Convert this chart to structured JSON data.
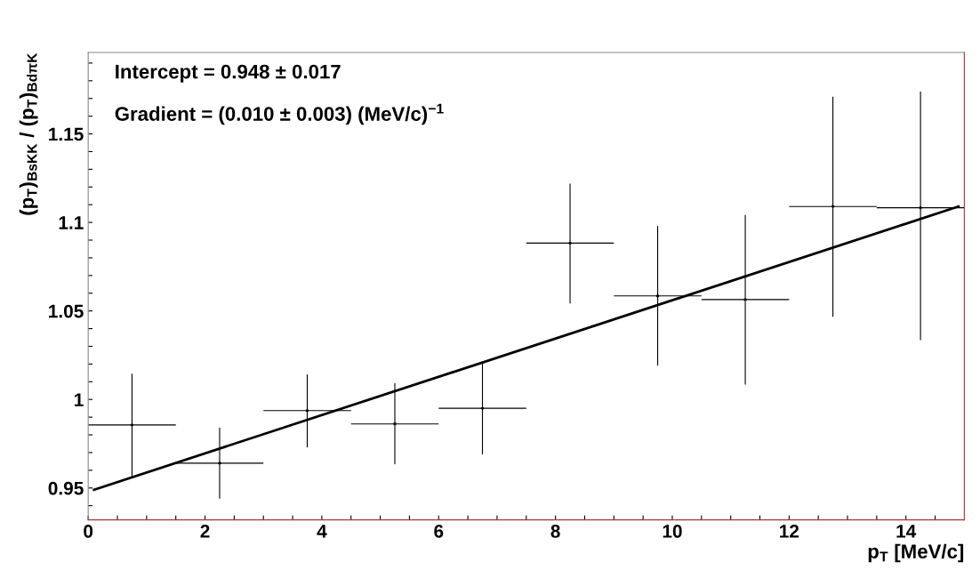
{
  "chart_data": {
    "type": "scatter",
    "xlabel": "p$_{T}$ [MeV/c]",
    "ylabel": "(p$_{T}$)$_{BsKK}$ / (p$_{T}$)$_{BdπK}$",
    "xlim": [
      0,
      15
    ],
    "ylim": [
      0.932,
      1.196
    ],
    "xticks": [
      0,
      {
        "value": 0.5,
        "label": null
      },
      {
        "value": 1,
        "label": null
      },
      {
        "value": 1.5,
        "label": null
      },
      2,
      {
        "value": 2.5,
        "label": null
      },
      {
        "value": 3,
        "label": null
      },
      {
        "value": 3.5,
        "label": null
      },
      4,
      {
        "value": 4.5,
        "label": null
      },
      {
        "value": 5,
        "label": null
      },
      {
        "value": 5.5,
        "label": null
      },
      6,
      {
        "value": 6.5,
        "label": null
      },
      {
        "value": 7,
        "label": null
      },
      {
        "value": 7.5,
        "label": null
      },
      8,
      {
        "value": 8.5,
        "label": null
      },
      {
        "value": 9,
        "label": null
      },
      {
        "value": 9.5,
        "label": null
      },
      10,
      {
        "value": 10.5,
        "label": null
      },
      {
        "value": 11,
        "label": null
      },
      {
        "value": 11.5,
        "label": null
      },
      12,
      {
        "value": 12.5,
        "label": null
      },
      {
        "value": 13,
        "label": null
      },
      {
        "value": 13.5,
        "label": null
      },
      14,
      {
        "value": 14.5,
        "label": null
      }
    ],
    "yticks": [
      {
        "value": 0.94,
        "label": null
      },
      0.95,
      {
        "value": 0.96,
        "label": null
      },
      {
        "value": 0.97,
        "label": null
      },
      {
        "value": 0.98,
        "label": null
      },
      {
        "value": 0.99,
        "label": null
      },
      1,
      {
        "value": 1.01,
        "label": null
      },
      {
        "value": 1.02,
        "label": null
      },
      {
        "value": 1.03,
        "label": null
      },
      {
        "value": 1.04,
        "label": null
      },
      1.05,
      {
        "value": 1.06,
        "label": null
      },
      {
        "value": 1.07,
        "label": null
      },
      {
        "value": 1.08,
        "label": null
      },
      {
        "value": 1.09,
        "label": null
      },
      1.1,
      {
        "value": 1.11,
        "label": null
      },
      {
        "value": 1.12,
        "label": null
      },
      {
        "value": 1.13,
        "label": null
      },
      {
        "value": 1.14,
        "label": null
      },
      1.15,
      {
        "value": 1.16,
        "label": null
      },
      {
        "value": 1.17,
        "label": null
      },
      {
        "value": 1.18,
        "label": null
      },
      {
        "value": 1.19,
        "label": null
      }
    ],
    "grid": false,
    "marker": "none",
    "series": [
      {
        "type": "scatter",
        "color": "#000000",
        "x": [
          0.75,
          2.25,
          3.75,
          5.25,
          6.75,
          8.25,
          9.75,
          11.25,
          12.75,
          14.25
        ],
        "values": [
          0.9856,
          0.964,
          0.9937,
          0.9862,
          0.995,
          1.0883,
          1.0585,
          1.0564,
          1.109,
          1.1083
        ],
        "errors": [
          [
            0.9564,
            1.0145
          ],
          [
            0.944,
            0.984
          ],
          [
            0.9729,
            1.0141
          ],
          [
            0.9634,
            1.0091
          ],
          [
            0.969,
            1.0207
          ],
          [
            1.0542,
            1.1219
          ],
          [
            1.0191,
            1.0979
          ],
          [
            1.0084,
            1.1042
          ],
          [
            1.0467,
            1.171
          ],
          [
            1.0335,
            1.1739
          ]
        ],
        "xerrors": [
          0.75,
          0.75,
          0.75,
          0.75,
          0.75,
          0.75,
          0.75,
          0.75,
          0.75,
          0.75
        ]
      },
      {
        "type": "line",
        "color": "#000000",
        "x": [
          0.1,
          14.9
        ],
        "values": [
          0.949,
          1.109
        ]
      }
    ],
    "annotations": [
      "Intercept = 0.948 ± 0.017",
      "Gradient = (0.010 ± 0.003) (MeV/c)$^{−1}$"
    ]
  }
}
